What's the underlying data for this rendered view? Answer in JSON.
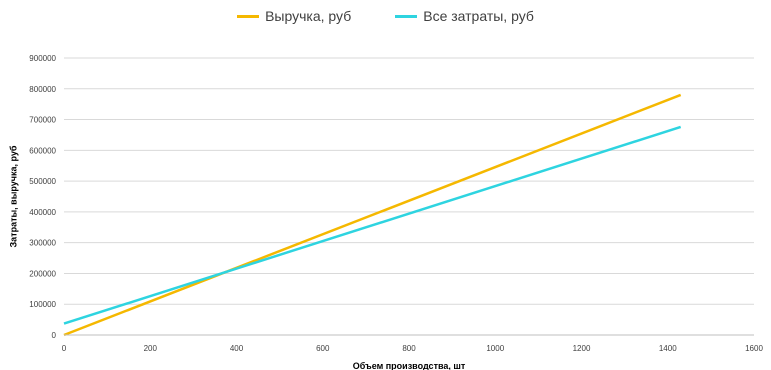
{
  "chart_data": {
    "type": "line",
    "title": "",
    "xlabel": "Объем производства, шт",
    "ylabel": "Затраты, выручка, руб",
    "xlim": [
      0,
      1600
    ],
    "ylim": [
      0,
      900000
    ],
    "x_ticks": [
      "0",
      "200",
      "400",
      "600",
      "800",
      "1000",
      "1200",
      "1400",
      "1600"
    ],
    "y_ticks": [
      "0",
      "100000",
      "200000",
      "300000",
      "400000",
      "500000",
      "600000",
      "700000",
      "800000",
      "900000"
    ],
    "grid": true,
    "legend_position": "top",
    "series": [
      {
        "name": "Выручка, руб",
        "color": "#F5B800",
        "x": [
          0,
          1430
        ],
        "values": [
          0,
          780000
        ]
      },
      {
        "name": "Все затраты, руб",
        "color": "#2ED4E0",
        "x": [
          0,
          1430
        ],
        "values": [
          37000,
          676000
        ]
      }
    ]
  }
}
